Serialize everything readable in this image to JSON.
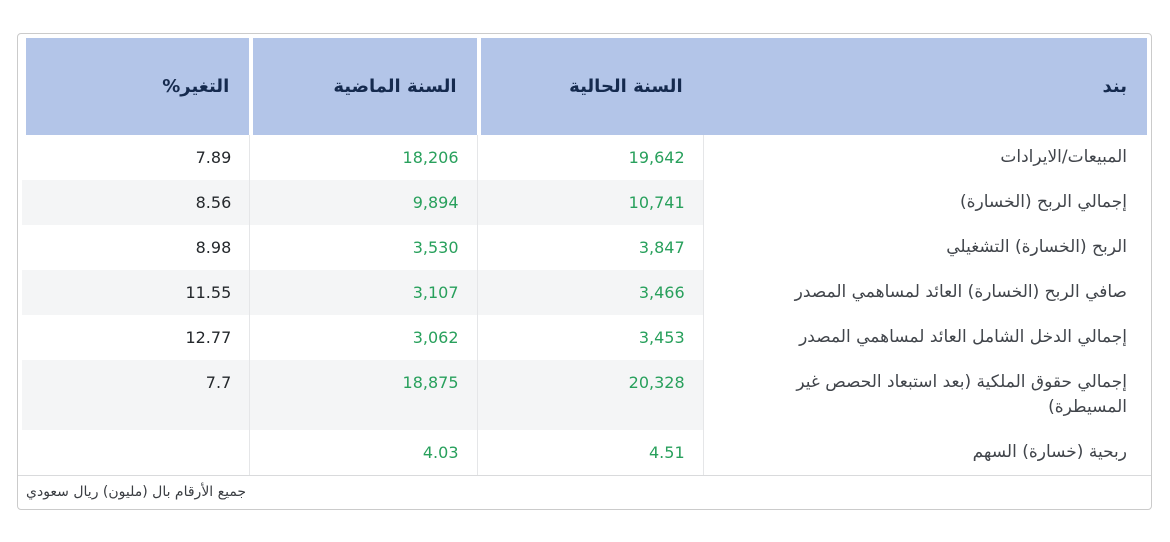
{
  "chart_data": {
    "type": "table",
    "direction": "rtl",
    "title": "",
    "columns": [
      "بند",
      "السنة الحالية",
      "السنة الماضية",
      "التغير%"
    ],
    "rows": [
      {
        "item": "المبيعات/الايرادات",
        "current": "19,642",
        "previous": "18,206",
        "change": "7.89"
      },
      {
        "item": "إجمالي الربح (الخسارة)",
        "current": "10,741",
        "previous": "9,894",
        "change": "8.56"
      },
      {
        "item": "الربح (الخسارة) التشغيلي",
        "current": "3,847",
        "previous": "3,530",
        "change": "8.98"
      },
      {
        "item": "صافي الربح (الخسارة) العائد لمساهمي المصدر",
        "current": "3,466",
        "previous": "3,107",
        "change": "11.55"
      },
      {
        "item": "إجمالي الدخل الشامل العائد لمساهمي المصدر",
        "current": "3,453",
        "previous": "3,062",
        "change": "12.77"
      },
      {
        "item": "إجمالي حقوق الملكية (بعد استبعاد الحصص غير المسيطرة)",
        "current": "20,328",
        "previous": "18,875",
        "change": "7.7"
      },
      {
        "item": "ربحية (خسارة) السهم",
        "current": "4.51",
        "previous": "4.03",
        "change": ""
      }
    ],
    "footnote": "جميع الأرقام بال (مليون) ريال سعودي",
    "layout": {
      "striped_columns": [
        "السنة الحالية",
        "السنة الماضية",
        "التغير%"
      ],
      "value_color_positive": "#28a05c",
      "header_background": "#b3c5e8",
      "header_text_color": "#152a4e",
      "stripe_color": "#f4f5f6",
      "border_color": "#cbcbcb"
    }
  }
}
